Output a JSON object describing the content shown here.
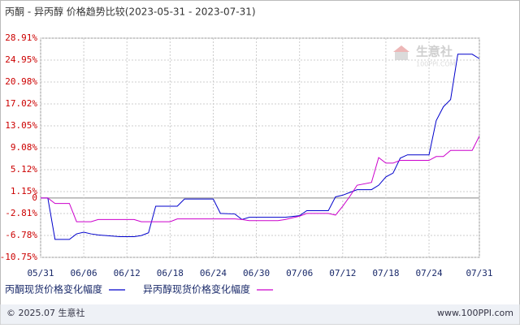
{
  "chart_data": {
    "type": "line",
    "title": "丙酮 - 异丙醇 价格趋势比较(2023-05-31 - 2023-07-31)",
    "x": [
      "05/31",
      "06/01",
      "06/02",
      "06/04",
      "06/05",
      "06/06",
      "06/07",
      "06/08",
      "06/11",
      "06/13",
      "06/14",
      "06/15",
      "06/16",
      "06/18",
      "06/19",
      "06/20",
      "06/24",
      "06/25",
      "06/27",
      "06/28",
      "06/29",
      "07/03",
      "07/04",
      "07/06",
      "07/07",
      "07/10",
      "07/11",
      "07/12",
      "07/13",
      "07/14",
      "07/16",
      "07/17",
      "07/18",
      "07/19",
      "07/20",
      "07/21",
      "07/22",
      "07/24",
      "07/25",
      "07/26",
      "07/27",
      "07/28",
      "07/30",
      "07/31"
    ],
    "series": [
      {
        "name": "丙酮现货价格变化幅度",
        "color": "#0000cc",
        "values": [
          0,
          0,
          -7.5,
          -7.5,
          -6.5,
          -6.2,
          -6.5,
          -6.7,
          -7.0,
          -7.0,
          -6.8,
          -6.3,
          -1.5,
          -1.5,
          -1.5,
          -0.2,
          -0.2,
          -2.8,
          -2.9,
          -3.9,
          -3.5,
          -3.5,
          -3.5,
          -3.2,
          -2.3,
          -2.3,
          0.2,
          0.5,
          1.0,
          1.5,
          1.5,
          2.3,
          3.8,
          4.5,
          7.2,
          7.8,
          7.8,
          7.8,
          14.0,
          16.5,
          17.8,
          26.0,
          26.0,
          25.2
        ]
      },
      {
        "name": "异丙醇现货价格变化幅度",
        "color": "#cc00cc",
        "values": [
          0,
          0,
          -1.0,
          -1.0,
          -4.3,
          -4.3,
          -4.3,
          -3.9,
          -3.9,
          -3.9,
          -4.3,
          -4.3,
          -4.3,
          -4.3,
          -3.8,
          -3.8,
          -3.8,
          -3.8,
          -3.8,
          -3.9,
          -4.1,
          -4.1,
          -3.9,
          -3.3,
          -2.8,
          -2.8,
          -3.1,
          -1.5,
          0.3,
          2.3,
          2.8,
          7.3,
          6.3,
          6.3,
          6.8,
          6.8,
          6.8,
          6.8,
          7.5,
          7.5,
          8.6,
          8.6,
          8.6,
          11.2
        ]
      }
    ],
    "xticks": [
      "05/31",
      "06/06",
      "06/12",
      "06/18",
      "06/24",
      "06/30",
      "07/06",
      "07/12",
      "07/18",
      "07/24",
      "07/31"
    ],
    "ylim": [
      -10.75,
      28.91
    ],
    "yticks": [
      {
        "value": 28.91,
        "label": "28.91%"
      },
      {
        "value": 24.95,
        "label": "24.95%"
      },
      {
        "value": 20.98,
        "label": "20.98%"
      },
      {
        "value": 17.02,
        "label": "17.02%"
      },
      {
        "value": 13.05,
        "label": "13.05%"
      },
      {
        "value": 9.08,
        "label": "9.08%"
      },
      {
        "value": 5.12,
        "label": "5.12%"
      },
      {
        "value": 1.15,
        "label": "1.15%"
      },
      0,
      {
        "value": -2.81,
        "label": "-2.81%"
      },
      {
        "value": -6.78,
        "label": "-6.78%"
      },
      {
        "value": -10.75,
        "label": "-10.75%"
      }
    ],
    "grid": true,
    "watermark": {
      "name": "生意社",
      "site": "100PPI.COM"
    },
    "footer": {
      "copyright": "© 2025.07 生意社",
      "site": "www.100PPI.com"
    }
  }
}
